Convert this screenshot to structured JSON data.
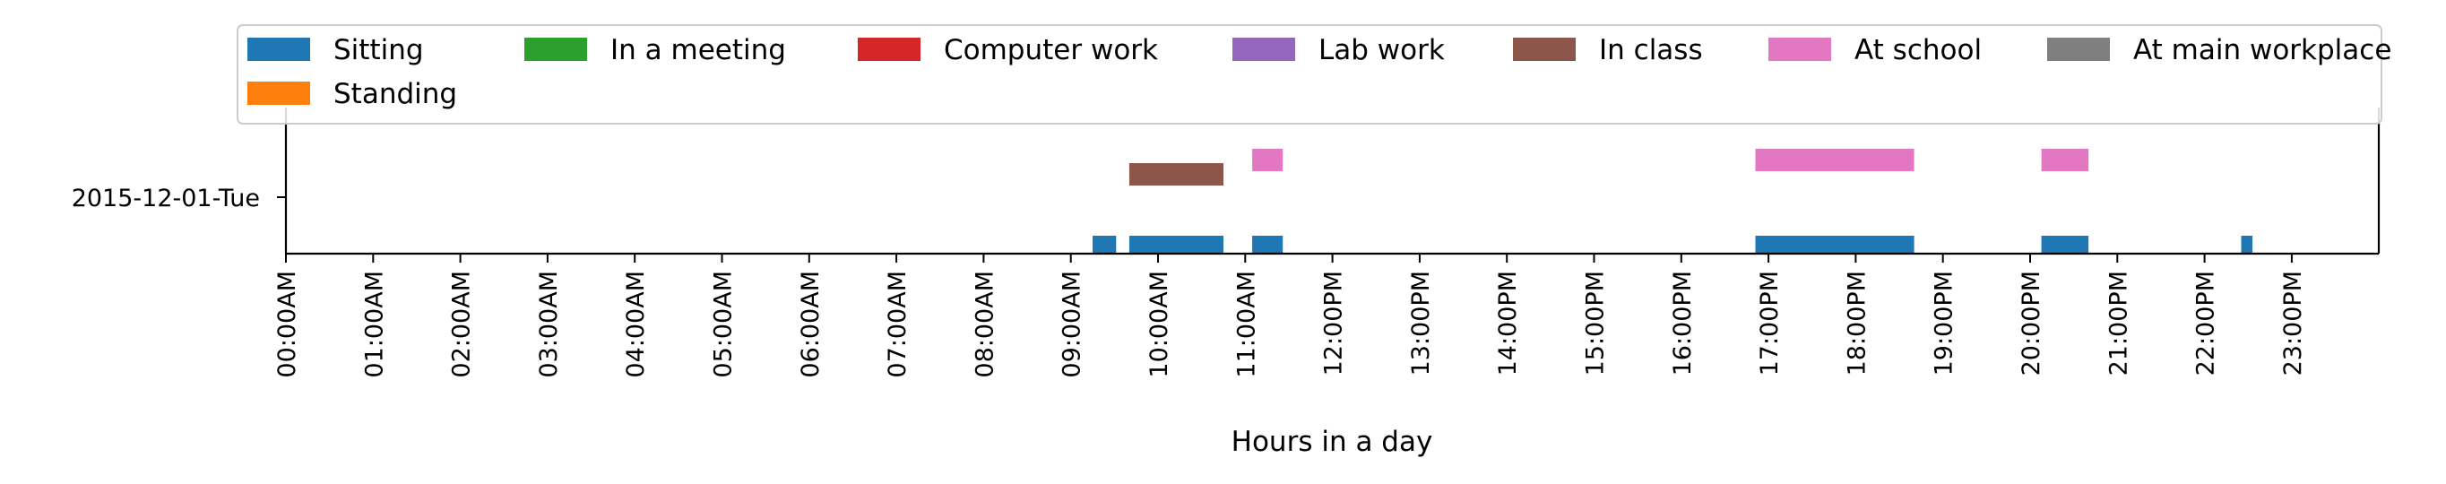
{
  "chart_data": {
    "type": "timeline",
    "xlabel": "Hours in a day",
    "ylabel": "",
    "xlim_hours": [
      0,
      24
    ],
    "legend_placement": "top (spanning full width)",
    "row_label": "2015-12-01-Tue",
    "x_ticks": [
      "00:00AM",
      "01:00AM",
      "02:00AM",
      "03:00AM",
      "04:00AM",
      "05:00AM",
      "06:00AM",
      "07:00AM",
      "08:00AM",
      "09:00AM",
      "10:00AM",
      "11:00AM",
      "12:00PM",
      "13:00PM",
      "14:00PM",
      "15:00PM",
      "16:00PM",
      "17:00PM",
      "18:00PM",
      "19:00PM",
      "20:00PM",
      "21:00PM",
      "22:00PM",
      "23:00PM"
    ],
    "series": [
      {
        "name": "Sitting",
        "color": "#1f77b4",
        "intervals": [
          [
            9.25,
            9.52
          ],
          [
            9.67,
            10.75
          ],
          [
            11.08,
            11.43
          ],
          [
            16.85,
            18.67
          ],
          [
            20.13,
            20.67
          ],
          [
            22.42,
            22.55
          ]
        ]
      },
      {
        "name": "Standing",
        "color": "#ff7f0e",
        "intervals": []
      },
      {
        "name": "In a meeting",
        "color": "#2ca02c",
        "intervals": []
      },
      {
        "name": "Computer work",
        "color": "#d62728",
        "intervals": []
      },
      {
        "name": "Lab work",
        "color": "#9467bd",
        "intervals": []
      },
      {
        "name": "In class",
        "color": "#8c564b",
        "intervals": [
          [
            9.67,
            10.75
          ]
        ]
      },
      {
        "name": "At school",
        "color": "#e377c2",
        "intervals": [
          [
            11.08,
            11.43
          ],
          [
            16.85,
            18.67
          ],
          [
            20.13,
            20.67
          ]
        ]
      },
      {
        "name": "At main workplace",
        "color": "#7f7f7f",
        "intervals": []
      }
    ]
  }
}
